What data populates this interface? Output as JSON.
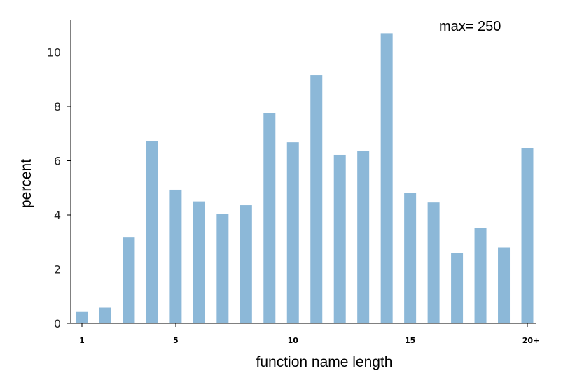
{
  "chart_data": {
    "type": "bar",
    "categories": [
      "1",
      "2",
      "3",
      "4",
      "5",
      "6",
      "7",
      "8",
      "9",
      "10",
      "11",
      "12",
      "13",
      "14",
      "15",
      "16",
      "17",
      "18",
      "19",
      "20+"
    ],
    "values": [
      0.42,
      0.58,
      3.17,
      6.73,
      4.93,
      4.5,
      4.04,
      4.36,
      7.76,
      6.68,
      9.16,
      6.22,
      6.37,
      10.7,
      4.82,
      4.46,
      2.6,
      3.53,
      2.8,
      6.47
    ],
    "xtick_labels": [
      "1",
      "5",
      "10",
      "15",
      "20+"
    ],
    "xtick_positions": [
      1,
      5,
      10,
      15,
      20
    ],
    "yticks": [
      0,
      2,
      4,
      6,
      8,
      10
    ],
    "xlabel": "function name length",
    "ylabel": "percent",
    "ylim": [
      0,
      11.2
    ],
    "annotation": "max= 250",
    "bar_color": "#8cb8d8",
    "grid": false,
    "legend": "none"
  }
}
